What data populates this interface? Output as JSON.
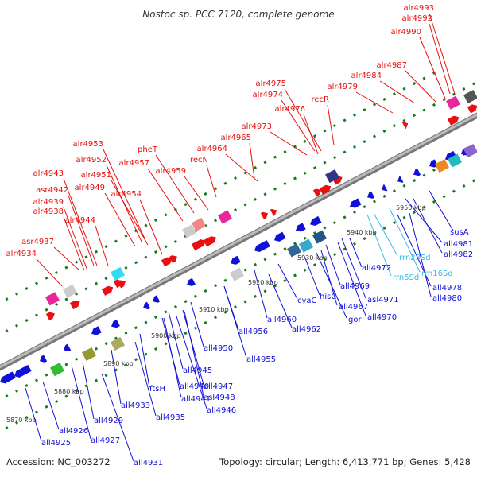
{
  "title": "Nostoc sp. PCC 7120, complete genome",
  "footer": {
    "accession": "Accession: NC_003272",
    "topology": "Topology: circular; Length: 6,413,771 bp; Genes: 5,428"
  },
  "colors": {
    "forward_gene": "#e81010",
    "reverse_gene": "#1010d8",
    "rna_label": "#33bbe8",
    "backbone": "#9a9a9a",
    "tick": "#1a7a1a"
  },
  "kbp_labels": [
    "5870 kbp",
    "5880 kbp",
    "5890 kbp",
    "5900 kbp",
    "5910 kbp",
    "5920 kbp",
    "5930 kbp",
    "5940 kbp",
    "5950 kbp"
  ],
  "forward_labels": [
    "alr4993",
    "alr4992",
    "alr4990",
    "alr4987",
    "alr4984",
    "alr4979",
    "recR",
    "alr4975",
    "alr4974",
    "alr4976",
    "alr4973",
    "alr4965",
    "alr4964",
    "recN",
    "pheT",
    "alr4959",
    "alr4957",
    "alr4953",
    "alr4952",
    "alr4951",
    "alr4954",
    "alr4949",
    "alr4943",
    "asr4942",
    "alr4939",
    "alr4938",
    "alr4944",
    "asr4937",
    "alr4934"
  ],
  "reverse_labels": [
    "susA",
    "all4981",
    "all4982",
    "all4978",
    "all4980",
    "all4972",
    "all4969",
    "asl4971",
    "all4970",
    "all4967",
    "gor",
    "hisC",
    "cyaC",
    "all4960",
    "all4962",
    "all4956",
    "all4955",
    "all4950",
    "all4945",
    "all4947",
    "asl4948",
    "all4946",
    "all4940",
    "all4941",
    "ftsH",
    "all4935",
    "all4933",
    "all4929",
    "all4927",
    "all4926",
    "all4925",
    "all4931"
  ],
  "rna_labels": [
    "rrn23Sd",
    "rrn16Sd",
    "rrn5Sd"
  ]
}
